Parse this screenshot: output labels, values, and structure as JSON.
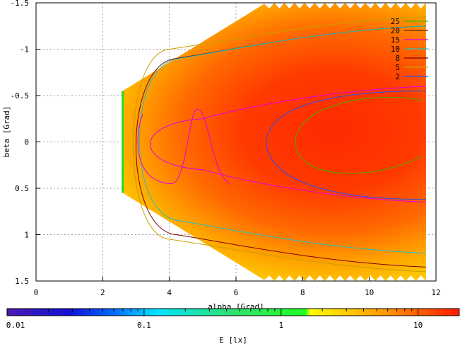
{
  "chart_data": {
    "type": "heatmap",
    "xlabel": "alpha [Grad]",
    "ylabel": "beta [Grad]",
    "xlim": [
      0,
      12
    ],
    "ylim": [
      -1.5,
      1.5
    ],
    "y_inverted": true,
    "grid": true,
    "x_ticks": [
      "0",
      "2",
      "4",
      "6",
      "8",
      "10",
      "12"
    ],
    "y_ticks": [
      "-1.5",
      "-1",
      "-0.5",
      "0",
      "0.5",
      "1",
      "1.5"
    ],
    "contour_legend_placement": "top-right",
    "contour_levels": [
      {
        "label": "25",
        "color": "#44b000"
      },
      {
        "label": "20",
        "color": "#6a2200"
      },
      {
        "label": "15",
        "color": "#e000e0"
      },
      {
        "label": "10",
        "color": "#20c0c0"
      },
      {
        "label": "8",
        "color": "#800000"
      },
      {
        "label": "5",
        "color": "#c8a000"
      },
      {
        "label": "2",
        "color": "#2050ff"
      }
    ],
    "colorbar": {
      "label": "E [lx]",
      "scale": "log",
      "range": [
        0.01,
        20
      ],
      "tick_labels": [
        "0.01",
        "0.1",
        "1",
        "10"
      ]
    },
    "region": {
      "alpha_min": 2.6,
      "alpha_max": 11.7,
      "beta_edge_at_alpha_min": 0.55,
      "beta_edge_at_alpha_max": 1.5
    }
  }
}
